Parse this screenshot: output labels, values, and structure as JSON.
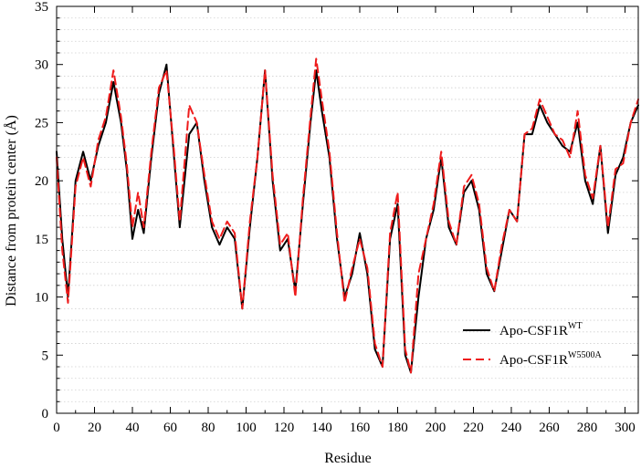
{
  "chart_data": {
    "type": "line",
    "title": "",
    "xlabel": "Residue",
    "ylabel": "Distance from protein center (Å)",
    "xlim": [
      0,
      307
    ],
    "ylim": [
      0,
      35
    ],
    "xticks": [
      0,
      20,
      40,
      60,
      80,
      100,
      120,
      140,
      160,
      180,
      200,
      220,
      240,
      260,
      280,
      300
    ],
    "yticks": [
      0,
      5,
      10,
      15,
      20,
      25,
      30,
      35
    ],
    "grid": "horizontal-dotted",
    "legend_position": "lower-right",
    "series": [
      {
        "name": "Apo-CSF1R",
        "name_sup": "WT",
        "color": "#000000",
        "style": "solid",
        "x": [
          0,
          3,
          6,
          10,
          14,
          18,
          22,
          26,
          30,
          34,
          37,
          40,
          43,
          46,
          50,
          54,
          58,
          62,
          65,
          70,
          74,
          78,
          82,
          86,
          90,
          94,
          98,
          102,
          106,
          110,
          114,
          118,
          122,
          126,
          130,
          134,
          137,
          140,
          144,
          148,
          152,
          156,
          160,
          164,
          168,
          172,
          176,
          180,
          184,
          187,
          191,
          195,
          199,
          203,
          207,
          211,
          215,
          219,
          223,
          227,
          231,
          235,
          239,
          243,
          247,
          251,
          255,
          259,
          263,
          267,
          271,
          275,
          279,
          283,
          287,
          291,
          295,
          299,
          303,
          307
        ],
        "y": [
          22.5,
          15,
          10,
          20,
          22.5,
          20,
          23,
          25,
          28.5,
          25,
          21,
          15,
          17.5,
          15.5,
          22,
          27.5,
          30,
          22,
          16,
          24,
          25,
          20,
          16,
          14.5,
          16,
          15,
          9,
          16,
          22,
          29.5,
          20,
          14,
          15,
          10.5,
          18,
          25,
          29.5,
          26,
          22,
          15,
          10,
          12,
          15.5,
          12,
          5.5,
          4,
          15,
          18,
          5,
          3.5,
          10,
          15,
          17.5,
          22,
          16,
          14.5,
          19,
          20,
          17.5,
          12,
          10.5,
          14,
          17.5,
          16.5,
          24,
          24,
          26.5,
          25,
          24,
          23,
          22.5,
          25,
          20,
          18,
          23,
          15.5,
          20.5,
          22,
          25,
          26.5
        ]
      },
      {
        "name": "Apo-CSF1R",
        "name_sup": "W5500A",
        "color": "#ee1c1c",
        "style": "dashed",
        "x": [
          0,
          3,
          6,
          10,
          14,
          18,
          22,
          26,
          30,
          34,
          37,
          40,
          43,
          46,
          50,
          54,
          58,
          62,
          65,
          70,
          74,
          78,
          82,
          86,
          90,
          94,
          98,
          102,
          106,
          110,
          114,
          118,
          122,
          126,
          130,
          134,
          137,
          140,
          144,
          148,
          152,
          156,
          160,
          164,
          168,
          172,
          176,
          180,
          184,
          187,
          191,
          195,
          199,
          203,
          207,
          211,
          215,
          219,
          223,
          227,
          231,
          235,
          239,
          243,
          247,
          251,
          255,
          259,
          263,
          267,
          271,
          275,
          279,
          283,
          287,
          291,
          295,
          299,
          303,
          307
        ],
        "y": [
          22,
          14,
          9.5,
          19.5,
          22,
          19.5,
          23.5,
          25.5,
          29.5,
          25.5,
          21.5,
          16,
          19,
          16,
          22.5,
          28,
          29.5,
          22.5,
          16.5,
          26.5,
          25,
          20.5,
          16.5,
          15,
          16.5,
          15.5,
          9,
          16.5,
          22,
          29.5,
          20.5,
          14.5,
          15.5,
          10,
          18.5,
          25.5,
          30.5,
          27,
          22.5,
          15.5,
          9.5,
          12.5,
          15,
          12.5,
          6,
          4,
          15.5,
          19,
          5.5,
          3.5,
          12,
          15,
          18,
          22.5,
          16.5,
          14.5,
          19.5,
          20.5,
          18,
          12.5,
          10.5,
          14.5,
          17.5,
          16.5,
          24,
          24.5,
          27,
          25.5,
          24,
          23.5,
          22,
          26,
          20.5,
          18.5,
          23,
          16,
          21,
          21.5,
          25,
          27
        ]
      }
    ]
  }
}
